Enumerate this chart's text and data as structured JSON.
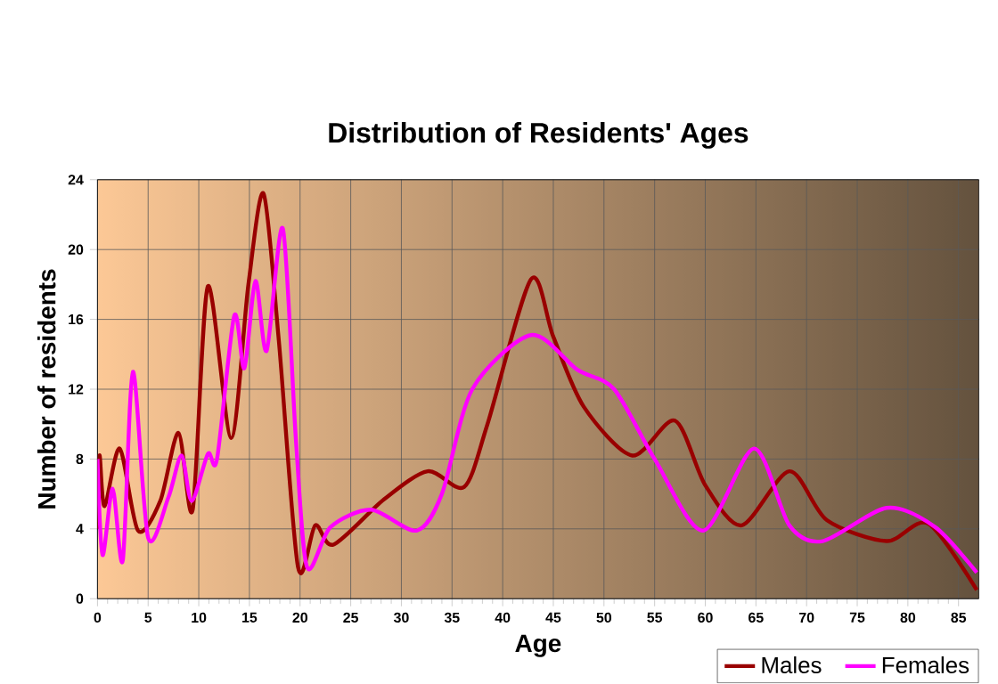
{
  "chart_data": {
    "type": "line",
    "title": "Distribution of Residents' Ages",
    "xlabel": "Age",
    "ylabel": "Number of residents",
    "xlim": [
      0,
      87
    ],
    "xticks": [
      0,
      5,
      10,
      15,
      20,
      25,
      30,
      35,
      40,
      45,
      50,
      55,
      60,
      65,
      70,
      75,
      80,
      85
    ],
    "ylim": [
      0,
      24
    ],
    "yticks": [
      0,
      4,
      8,
      12,
      16,
      20,
      24
    ],
    "grid": true,
    "legend": "bottom right",
    "marker": "none",
    "line_style": "solid",
    "series": [
      {
        "name": "Males",
        "color": "#990000",
        "x": [
          0,
          0.2,
          0.7,
          2.2,
          4,
          6.2,
          8,
          9.4,
          10.9,
          13.2,
          14.9,
          16.4,
          17.9,
          19.8,
          21.5,
          23.3,
          28.3,
          32.6,
          36.2,
          38.5,
          42.8,
          45,
          48,
          52.8,
          57,
          60,
          63.6,
          68.3,
          72,
          77.9,
          82,
          86.8
        ],
        "values": [
          4,
          8.2,
          5.3,
          8.6,
          3.9,
          5.6,
          9.5,
          5.1,
          17.9,
          9.2,
          18,
          23.2,
          14.8,
          1.8,
          4.2,
          3.1,
          5.7,
          7.3,
          6.4,
          10,
          18.3,
          15,
          11,
          8.2,
          10.2,
          6.5,
          4.2,
          7.3,
          4.5,
          3.3,
          4.3,
          0.5
        ]
      },
      {
        "name": "Females",
        "color": "#ff00ff",
        "x": [
          0,
          0.5,
          1.5,
          2.5,
          3.5,
          5,
          7,
          8.3,
          9.3,
          10.9,
          11.8,
          13.5,
          14.5,
          15.6,
          16.7,
          18.3,
          19.6,
          20.7,
          23,
          27,
          31.5,
          34,
          37,
          42.8,
          47.4,
          51,
          55,
          59.8,
          64.8,
          68.3,
          71.6,
          77.9,
          82.7,
          86.8
        ],
        "values": [
          8,
          2.5,
          6.3,
          2.2,
          13,
          3.5,
          5.8,
          8.2,
          5.6,
          8.3,
          8,
          16.2,
          13.2,
          18.2,
          14.2,
          21.2,
          9,
          1.8,
          4.1,
          5.1,
          3.9,
          6,
          12,
          15.1,
          13.1,
          12,
          8,
          3.9,
          8.6,
          4.2,
          3.3,
          5.2,
          4.1,
          1.5
        ]
      }
    ]
  }
}
